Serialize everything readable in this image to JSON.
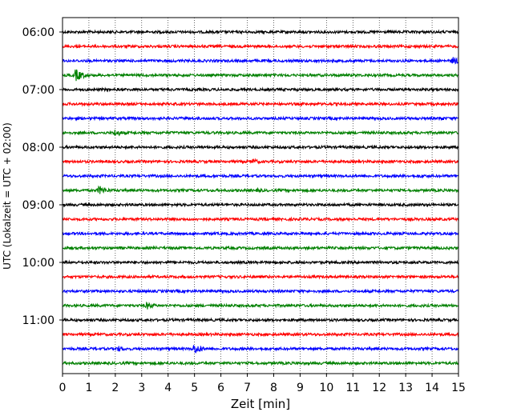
{
  "chart_data": {
    "type": "line",
    "xlabel": "Zeit  [min]",
    "ylabel": "UTC (Lokalzeit = UTC + 02:00)",
    "xlim": [
      0,
      15
    ],
    "x_ticks": [
      "0",
      "1",
      "2",
      "3",
      "4",
      "5",
      "6",
      "7",
      "8",
      "9",
      "10",
      "11",
      "12",
      "13",
      "14",
      "15"
    ],
    "y_ticks": [
      "06:00",
      "07:00",
      "08:00",
      "09:00",
      "10:00",
      "11:00"
    ],
    "y_tick_rows": [
      0,
      4,
      8,
      12,
      16,
      20
    ],
    "grid": "vertical dotted",
    "colors": [
      "#000000",
      "#ff0000",
      "#0000ff",
      "#008000"
    ],
    "rows": [
      {
        "start": "06:00",
        "color": "#000000",
        "events": []
      },
      {
        "start": "06:15",
        "color": "#ff0000",
        "events": []
      },
      {
        "start": "06:30",
        "color": "#0000ff",
        "events": [
          {
            "t": 14.8,
            "amp": 5
          }
        ]
      },
      {
        "start": "06:45",
        "color": "#008000",
        "events": [
          {
            "t": 0.5,
            "amp": 8
          }
        ]
      },
      {
        "start": "07:00",
        "color": "#000000",
        "events": []
      },
      {
        "start": "07:15",
        "color": "#ff0000",
        "events": []
      },
      {
        "start": "07:30",
        "color": "#0000ff",
        "events": [
          {
            "t": 14.3,
            "amp": 3
          }
        ]
      },
      {
        "start": "07:45",
        "color": "#008000",
        "events": [
          {
            "t": 2.0,
            "amp": 5
          }
        ]
      },
      {
        "start": "08:00",
        "color": "#000000",
        "events": []
      },
      {
        "start": "08:15",
        "color": "#ff0000",
        "events": [
          {
            "t": 7.2,
            "amp": 4
          }
        ]
      },
      {
        "start": "08:30",
        "color": "#0000ff",
        "events": [
          {
            "t": 13.6,
            "amp": 3
          }
        ]
      },
      {
        "start": "08:45",
        "color": "#008000",
        "events": [
          {
            "t": 1.4,
            "amp": 6
          },
          {
            "t": 7.4,
            "amp": 3
          }
        ]
      },
      {
        "start": "09:00",
        "color": "#000000",
        "events": []
      },
      {
        "start": "09:15",
        "color": "#ff0000",
        "events": []
      },
      {
        "start": "09:30",
        "color": "#0000ff",
        "events": []
      },
      {
        "start": "09:45",
        "color": "#008000",
        "events": []
      },
      {
        "start": "10:00",
        "color": "#000000",
        "events": []
      },
      {
        "start": "10:15",
        "color": "#ff0000",
        "events": []
      },
      {
        "start": "10:30",
        "color": "#0000ff",
        "events": []
      },
      {
        "start": "10:45",
        "color": "#008000",
        "events": [
          {
            "t": 3.2,
            "amp": 5
          }
        ]
      },
      {
        "start": "11:00",
        "color": "#000000",
        "events": []
      },
      {
        "start": "11:15",
        "color": "#ff0000",
        "events": []
      },
      {
        "start": "11:30",
        "color": "#0000ff",
        "events": [
          {
            "t": 2.1,
            "amp": 4
          },
          {
            "t": 5.0,
            "amp": 7
          }
        ]
      },
      {
        "start": "11:45",
        "color": "#008000",
        "events": []
      }
    ]
  }
}
